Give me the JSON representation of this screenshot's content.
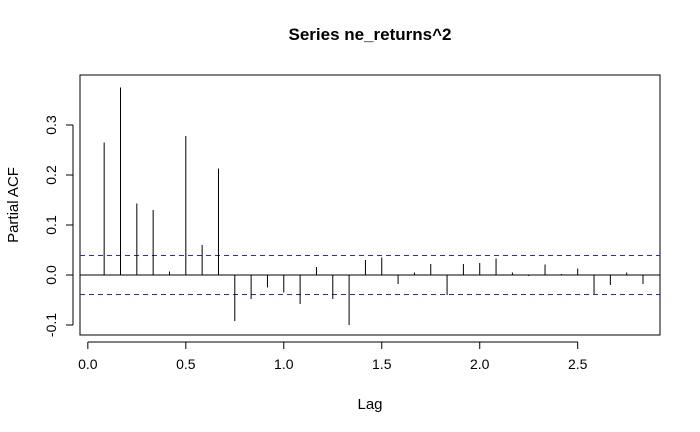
{
  "chart_data": {
    "type": "bar",
    "title": "Series  ne_returns^2",
    "xlabel": "Lag",
    "ylabel": "Partial ACF",
    "xlim": [
      -0.04,
      2.92
    ],
    "ylim": [
      -0.12,
      0.4
    ],
    "xticks": [
      0.0,
      0.5,
      1.0,
      1.5,
      2.0,
      2.5
    ],
    "xtick_labels": [
      "0.0",
      "0.5",
      "1.0",
      "1.5",
      "2.0",
      "2.5"
    ],
    "yticks": [
      -0.1,
      0.0,
      0.1,
      0.2,
      0.3
    ],
    "ytick_labels": [
      "-0.1",
      "0.0",
      "0.1",
      "0.2",
      "0.3"
    ],
    "confidence_bound": 0.039,
    "ci_color": "#2a2ad6",
    "grid": false,
    "lags": [
      0.0833,
      0.1667,
      0.25,
      0.3333,
      0.4167,
      0.5,
      0.5833,
      0.6667,
      0.75,
      0.8333,
      0.9167,
      1.0,
      1.0833,
      1.1667,
      1.25,
      1.3333,
      1.4167,
      1.5,
      1.5833,
      1.6667,
      1.75,
      1.8333,
      1.9167,
      2.0,
      2.0833,
      2.1667,
      2.25,
      2.3333,
      2.4167,
      2.5,
      2.5833,
      2.6667,
      2.75,
      2.8333
    ],
    "values": [
      0.265,
      0.375,
      0.143,
      0.13,
      0.007,
      0.278,
      0.06,
      0.213,
      -0.092,
      -0.048,
      -0.025,
      -0.035,
      -0.058,
      0.016,
      -0.048,
      -0.1,
      0.03,
      0.035,
      -0.018,
      0.005,
      0.022,
      -0.04,
      0.022,
      0.024,
      0.033,
      0.005,
      -0.002,
      0.021,
      0.002,
      0.013,
      -0.038,
      -0.02,
      0.005,
      -0.018
    ]
  }
}
